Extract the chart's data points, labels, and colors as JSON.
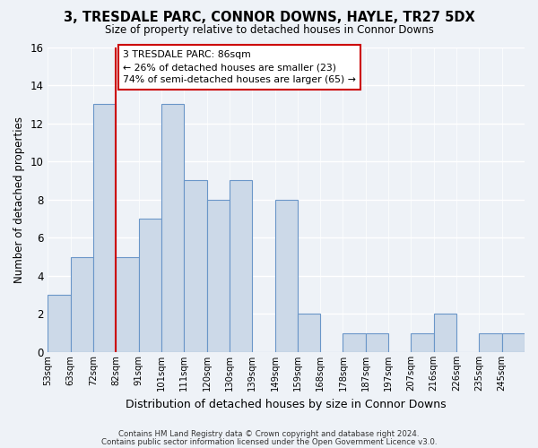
{
  "title": "3, TRESDALE PARC, CONNOR DOWNS, HAYLE, TR27 5DX",
  "subtitle": "Size of property relative to detached houses in Connor Downs",
  "xlabel": "Distribution of detached houses by size in Connor Downs",
  "ylabel": "Number of detached properties",
  "bin_labels": [
    "53sqm",
    "63sqm",
    "72sqm",
    "82sqm",
    "91sqm",
    "101sqm",
    "111sqm",
    "120sqm",
    "130sqm",
    "139sqm",
    "149sqm",
    "159sqm",
    "168sqm",
    "178sqm",
    "187sqm",
    "197sqm",
    "207sqm",
    "216sqm",
    "226sqm",
    "235sqm",
    "245sqm"
  ],
  "n_bins": 21,
  "counts": [
    3,
    5,
    13,
    5,
    7,
    13,
    9,
    8,
    9,
    0,
    8,
    2,
    0,
    1,
    1,
    0,
    1,
    2,
    0,
    1,
    1
  ],
  "bar_color": "#ccd9e8",
  "bar_edge_color": "#6a96c8",
  "marker_bin": 3,
  "marker_color": "#cc0000",
  "ylim": [
    0,
    16
  ],
  "yticks": [
    0,
    2,
    4,
    6,
    8,
    10,
    12,
    14,
    16
  ],
  "annotation_title": "3 TRESDALE PARC: 86sqm",
  "annotation_line1": "← 26% of detached houses are smaller (23)",
  "annotation_line2": "74% of semi-detached houses are larger (65) →",
  "annotation_box_color": "#ffffff",
  "annotation_box_edge": "#cc0000",
  "footer1": "Contains HM Land Registry data © Crown copyright and database right 2024.",
  "footer2": "Contains public sector information licensed under the Open Government Licence v3.0.",
  "bg_color": "#eef2f7",
  "grid_color": "#ffffff",
  "font_family": "DejaVu Sans"
}
